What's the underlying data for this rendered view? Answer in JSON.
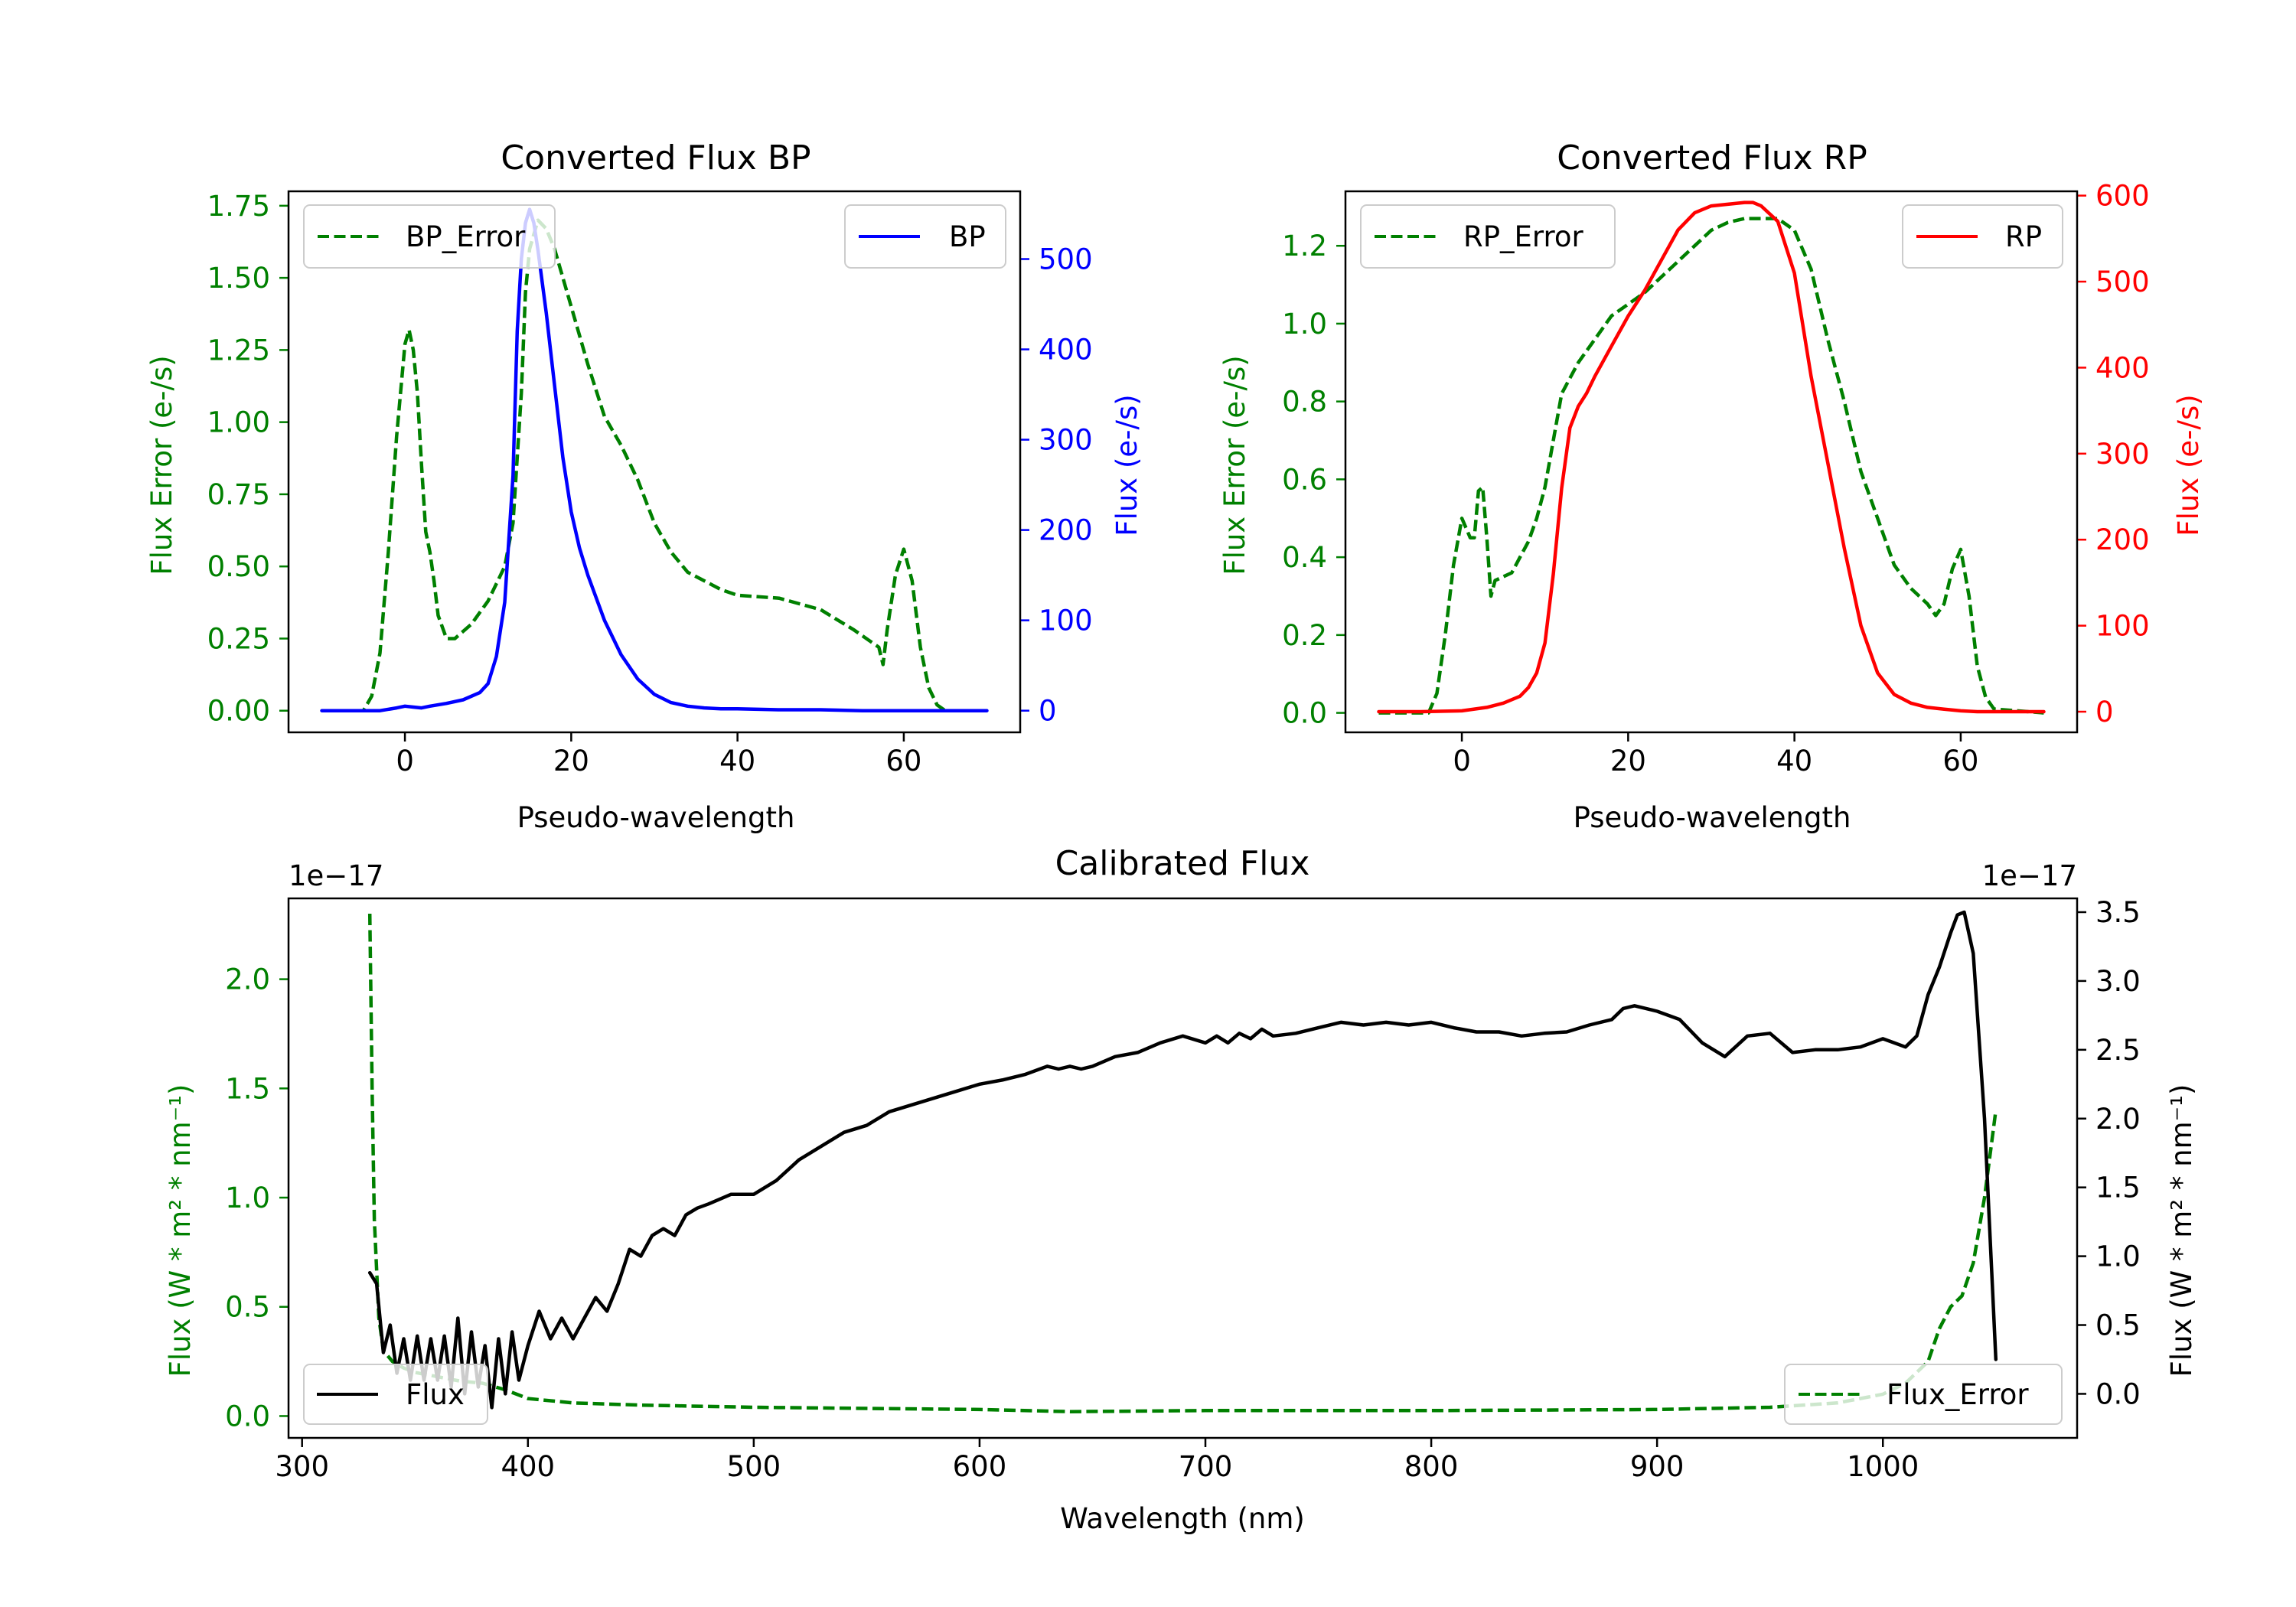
{
  "colors": {
    "bp": "#0000ff",
    "rp": "#ff0000",
    "error": "#008000",
    "flux": "#000000",
    "axis": "#000000"
  },
  "chart_data": [
    {
      "id": "bp",
      "type": "line",
      "title": "Converted Flux BP",
      "xlabel": "Pseudo-wavelength",
      "ylabel_left": "Flux Error (e-/s)",
      "ylabel_right": "Flux (e-/s)",
      "xlim": [
        -14,
        74
      ],
      "ylim_left": [
        -0.075,
        1.8
      ],
      "ylim_right": [
        -24,
        575
      ],
      "xticks": [
        0,
        20,
        40,
        60
      ],
      "yticks_left": [
        0.0,
        0.25,
        0.5,
        0.75,
        1.0,
        1.25,
        1.5,
        1.75
      ],
      "ytick_labels_left": [
        "0.00",
        "0.25",
        "0.50",
        "0.75",
        "1.00",
        "1.25",
        "1.50",
        "1.75"
      ],
      "yticks_right": [
        0,
        100,
        200,
        300,
        400,
        500
      ],
      "legend_left": {
        "label": "BP_Error",
        "position": "upper-left"
      },
      "legend_right": {
        "label": "BP",
        "position": "upper-right"
      },
      "series": [
        {
          "name": "BP_Error",
          "axis": "left",
          "style": "dashed",
          "color_key": "error",
          "x": [
            -10,
            -5,
            -4,
            -3,
            -2,
            -1,
            0,
            0.5,
            1,
            1.5,
            2,
            2.5,
            3,
            3.5,
            4,
            5,
            6,
            8,
            10,
            12,
            13,
            14,
            14.5,
            15,
            16,
            17,
            18,
            20,
            22,
            24,
            26,
            28,
            30,
            32,
            34,
            36,
            38,
            40,
            45,
            50,
            54,
            57,
            57.5,
            58,
            59,
            60,
            61,
            62,
            63,
            64,
            65,
            70
          ],
          "y": [
            0.0,
            0.0,
            0.05,
            0.2,
            0.55,
            0.95,
            1.27,
            1.32,
            1.25,
            1.1,
            0.85,
            0.62,
            0.55,
            0.45,
            0.33,
            0.25,
            0.25,
            0.3,
            0.38,
            0.5,
            0.65,
            1.1,
            1.45,
            1.6,
            1.7,
            1.67,
            1.6,
            1.4,
            1.2,
            1.02,
            0.92,
            0.8,
            0.65,
            0.55,
            0.48,
            0.45,
            0.42,
            0.4,
            0.39,
            0.35,
            0.28,
            0.22,
            0.16,
            0.28,
            0.47,
            0.56,
            0.45,
            0.22,
            0.08,
            0.02,
            0.0,
            0.0
          ]
        },
        {
          "name": "BP",
          "axis": "right",
          "style": "solid",
          "color_key": "bp",
          "x": [
            -10,
            -6,
            -3,
            -1,
            0,
            1,
            2,
            3,
            5,
            7,
            9,
            10,
            11,
            12,
            13,
            13.5,
            14,
            14.5,
            15,
            15.5,
            16,
            17,
            18,
            19,
            20,
            21,
            22,
            24,
            26,
            28,
            30,
            32,
            34,
            36,
            38,
            40,
            45,
            50,
            55,
            60,
            65,
            70
          ],
          "y": [
            0,
            0,
            0,
            3,
            5,
            4,
            3,
            5,
            8,
            12,
            20,
            30,
            60,
            120,
            260,
            420,
            500,
            540,
            555,
            540,
            510,
            440,
            360,
            280,
            220,
            180,
            150,
            100,
            62,
            35,
            18,
            9,
            5,
            3,
            2,
            2,
            1,
            1,
            0,
            0,
            0,
            0
          ]
        }
      ]
    },
    {
      "id": "rp",
      "type": "line",
      "title": "Converted Flux RP",
      "xlabel": "Pseudo-wavelength",
      "ylabel_left": "Flux Error (e-/s)",
      "ylabel_right": "Flux (e-/s)",
      "xlim": [
        -14,
        74
      ],
      "ylim_left": [
        -0.05,
        1.34
      ],
      "ylim_right": [
        -24,
        605
      ],
      "xticks": [
        0,
        20,
        40,
        60
      ],
      "yticks_left": [
        0.0,
        0.2,
        0.4,
        0.6,
        0.8,
        1.0,
        1.2
      ],
      "ytick_labels_left": [
        "0.0",
        "0.2",
        "0.4",
        "0.6",
        "0.8",
        "1.0",
        "1.2"
      ],
      "yticks_right": [
        0,
        100,
        200,
        300,
        400,
        500,
        600
      ],
      "legend_left": {
        "label": "RP_Error",
        "position": "upper-left"
      },
      "legend_right": {
        "label": "RP",
        "position": "upper-right"
      },
      "series": [
        {
          "name": "RP_Error",
          "axis": "left",
          "style": "dashed",
          "color_key": "error",
          "x": [
            -10,
            -4,
            -3,
            -2,
            -1,
            0,
            1,
            1.5,
            2,
            2.5,
            3,
            3.5,
            4,
            5,
            6,
            7,
            8,
            9,
            10,
            11,
            12,
            14,
            16,
            18,
            20,
            22,
            24,
            26,
            28,
            30,
            32,
            34,
            36,
            38,
            40,
            42,
            44,
            46,
            48,
            50,
            52,
            54,
            56,
            57,
            58,
            59,
            60,
            61,
            62,
            63,
            64,
            70
          ],
          "y": [
            0.0,
            0.0,
            0.05,
            0.2,
            0.38,
            0.5,
            0.45,
            0.45,
            0.57,
            0.58,
            0.45,
            0.3,
            0.34,
            0.35,
            0.36,
            0.4,
            0.44,
            0.5,
            0.58,
            0.7,
            0.82,
            0.9,
            0.96,
            1.02,
            1.05,
            1.08,
            1.12,
            1.16,
            1.2,
            1.24,
            1.26,
            1.27,
            1.27,
            1.27,
            1.24,
            1.14,
            0.96,
            0.8,
            0.62,
            0.5,
            0.38,
            0.32,
            0.28,
            0.25,
            0.28,
            0.37,
            0.42,
            0.3,
            0.12,
            0.04,
            0.01,
            0.0
          ]
        },
        {
          "name": "RP",
          "axis": "right",
          "style": "solid",
          "color_key": "rp",
          "x": [
            -10,
            -5,
            0,
            3,
            5,
            7,
            8,
            9,
            10,
            11,
            12,
            13,
            14,
            15,
            16,
            18,
            20,
            22,
            24,
            26,
            28,
            30,
            32,
            34,
            35,
            36,
            38,
            40,
            42,
            44,
            46,
            48,
            50,
            52,
            54,
            56,
            58,
            60,
            62,
            65,
            70
          ],
          "y": [
            0,
            0,
            1,
            5,
            10,
            18,
            28,
            45,
            80,
            160,
            260,
            330,
            355,
            370,
            390,
            425,
            460,
            490,
            525,
            560,
            580,
            588,
            590,
            592,
            592,
            588,
            570,
            510,
            390,
            290,
            190,
            100,
            45,
            20,
            10,
            5,
            3,
            1,
            0,
            0,
            0
          ]
        }
      ]
    },
    {
      "id": "calibrated",
      "type": "line",
      "title": "Calibrated Flux",
      "xlabel": "Wavelength (nm)",
      "ylabel_left": "Flux (W * m² * nm⁻¹)",
      "ylabel_right": "Flux (W * m² * nm⁻¹)",
      "offset_left": "1e−17",
      "offset_right": "1e−17",
      "xlim": [
        294,
        1086
      ],
      "ylim_left": [
        -0.1,
        2.37
      ],
      "ylim_right": [
        -0.32,
        3.6
      ],
      "xticks": [
        300,
        400,
        500,
        600,
        700,
        800,
        900,
        1000
      ],
      "yticks_left": [
        0.0,
        0.5,
        1.0,
        1.5,
        2.0
      ],
      "ytick_labels_left": [
        "0.0",
        "0.5",
        "1.0",
        "1.5",
        "2.0"
      ],
      "yticks_right": [
        0.0,
        0.5,
        1.0,
        1.5,
        2.0,
        2.5,
        3.0,
        3.5
      ],
      "ytick_labels_right": [
        "0.0",
        "0.5",
        "1.0",
        "1.5",
        "2.0",
        "2.5",
        "3.0",
        "3.5"
      ],
      "legend_left": {
        "label": "Flux",
        "position": "lower-left"
      },
      "legend_right": {
        "label": "Flux_Error",
        "position": "lower-right"
      },
      "series": [
        {
          "name": "Flux_Error",
          "axis": "left",
          "style": "dashed",
          "color_key": "error",
          "x": [
            330,
            331,
            332,
            334,
            336,
            340,
            345,
            350,
            360,
            370,
            380,
            390,
            400,
            420,
            450,
            500,
            550,
            600,
            640,
            700,
            800,
            900,
            950,
            980,
            1000,
            1010,
            1020,
            1025,
            1030,
            1035,
            1040,
            1045,
            1050
          ],
          "y": [
            2.3,
            1.5,
            0.9,
            0.45,
            0.3,
            0.25,
            0.22,
            0.2,
            0.18,
            0.16,
            0.15,
            0.12,
            0.08,
            0.06,
            0.05,
            0.04,
            0.035,
            0.03,
            0.02,
            0.025,
            0.025,
            0.03,
            0.04,
            0.06,
            0.1,
            0.15,
            0.25,
            0.4,
            0.5,
            0.55,
            0.7,
            1.0,
            1.4
          ]
        },
        {
          "name": "Flux",
          "axis": "right",
          "style": "solid",
          "color_key": "flux",
          "x": [
            330,
            333,
            336,
            339,
            342,
            345,
            348,
            351,
            354,
            357,
            360,
            363,
            366,
            369,
            372,
            375,
            378,
            381,
            384,
            387,
            390,
            393,
            396,
            400,
            405,
            410,
            415,
            420,
            425,
            430,
            435,
            440,
            445,
            450,
            455,
            460,
            465,
            470,
            475,
            480,
            490,
            500,
            510,
            520,
            530,
            540,
            550,
            560,
            570,
            580,
            590,
            600,
            610,
            620,
            630,
            635,
            640,
            645,
            650,
            660,
            670,
            680,
            690,
            700,
            705,
            710,
            715,
            720,
            725,
            730,
            740,
            750,
            760,
            770,
            780,
            790,
            800,
            810,
            820,
            830,
            840,
            850,
            860,
            870,
            880,
            885,
            890,
            900,
            910,
            920,
            930,
            940,
            950,
            960,
            970,
            980,
            990,
            1000,
            1005,
            1010,
            1015,
            1020,
            1025,
            1030,
            1033,
            1036,
            1040,
            1045,
            1050
          ],
          "y": [
            0.88,
            0.8,
            0.3,
            0.5,
            0.15,
            0.4,
            0.1,
            0.42,
            0.1,
            0.4,
            0.1,
            0.42,
            0.05,
            0.55,
            0.0,
            0.45,
            0.05,
            0.35,
            -0.1,
            0.4,
            0.0,
            0.45,
            0.1,
            0.35,
            0.6,
            0.4,
            0.55,
            0.4,
            0.55,
            0.7,
            0.6,
            0.8,
            1.05,
            1.0,
            1.15,
            1.2,
            1.15,
            1.3,
            1.35,
            1.38,
            1.45,
            1.45,
            1.55,
            1.7,
            1.8,
            1.9,
            1.95,
            2.05,
            2.1,
            2.15,
            2.2,
            2.25,
            2.28,
            2.32,
            2.38,
            2.36,
            2.38,
            2.36,
            2.38,
            2.45,
            2.48,
            2.55,
            2.6,
            2.55,
            2.6,
            2.55,
            2.62,
            2.58,
            2.65,
            2.6,
            2.62,
            2.66,
            2.7,
            2.68,
            2.7,
            2.68,
            2.7,
            2.66,
            2.63,
            2.63,
            2.6,
            2.62,
            2.63,
            2.68,
            2.72,
            2.8,
            2.82,
            2.78,
            2.72,
            2.55,
            2.45,
            2.6,
            2.62,
            2.48,
            2.5,
            2.5,
            2.52,
            2.58,
            2.55,
            2.52,
            2.6,
            2.9,
            3.1,
            3.35,
            3.48,
            3.5,
            3.2,
            2.0,
            0.25
          ]
        }
      ]
    }
  ]
}
